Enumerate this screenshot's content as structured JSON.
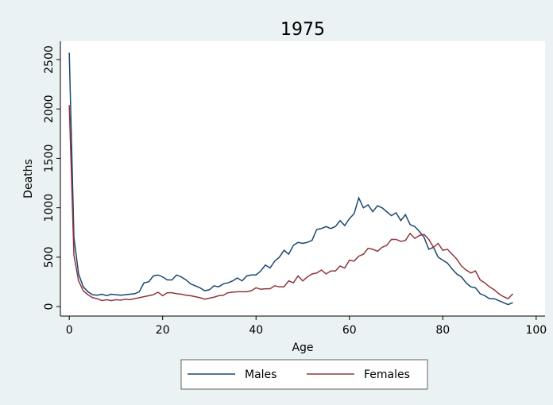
{
  "chart_data": {
    "type": "line",
    "title": "1975",
    "x_label": "Age",
    "y_label": "Deaths",
    "x": [
      0,
      1,
      2,
      3,
      4,
      5,
      6,
      7,
      8,
      9,
      10,
      11,
      12,
      13,
      14,
      15,
      16,
      17,
      18,
      19,
      20,
      21,
      22,
      23,
      24,
      25,
      26,
      27,
      28,
      29,
      30,
      31,
      32,
      33,
      34,
      35,
      36,
      37,
      38,
      39,
      40,
      41,
      42,
      43,
      44,
      45,
      46,
      47,
      48,
      49,
      50,
      51,
      52,
      53,
      54,
      55,
      56,
      57,
      58,
      59,
      60,
      61,
      62,
      63,
      64,
      65,
      66,
      67,
      68,
      69,
      70,
      71,
      72,
      73,
      74,
      75,
      76,
      77,
      78,
      79,
      80,
      81,
      82,
      83,
      84,
      85,
      86,
      87,
      88,
      89,
      90,
      91,
      92,
      93,
      94,
      95
    ],
    "series": [
      {
        "name": "Males",
        "color": "#1a476f",
        "values": [
          2570,
          700,
          330,
          200,
          150,
          120,
          115,
          125,
          110,
          125,
          120,
          115,
          120,
          125,
          130,
          150,
          240,
          250,
          310,
          320,
          300,
          270,
          270,
          320,
          300,
          270,
          230,
          210,
          190,
          160,
          170,
          210,
          200,
          230,
          240,
          260,
          290,
          260,
          310,
          320,
          320,
          360,
          420,
          390,
          460,
          500,
          570,
          530,
          620,
          650,
          640,
          650,
          670,
          780,
          790,
          810,
          790,
          810,
          870,
          820,
          890,
          940,
          1100,
          1000,
          1030,
          960,
          1020,
          1000,
          960,
          920,
          950,
          870,
          930,
          830,
          810,
          760,
          700,
          580,
          600,
          500,
          470,
          440,
          380,
          330,
          300,
          240,
          200,
          190,
          130,
          110,
          80,
          80,
          60,
          40,
          20,
          40
        ]
      },
      {
        "name": "Females",
        "color": "#90353b",
        "values": [
          2040,
          520,
          260,
          160,
          120,
          90,
          80,
          60,
          70,
          60,
          70,
          65,
          75,
          70,
          80,
          90,
          100,
          110,
          120,
          145,
          110,
          140,
          140,
          130,
          125,
          115,
          110,
          100,
          90,
          75,
          85,
          95,
          110,
          115,
          140,
          145,
          150,
          150,
          150,
          160,
          190,
          175,
          180,
          180,
          210,
          200,
          200,
          260,
          240,
          310,
          260,
          300,
          330,
          340,
          370,
          330,
          360,
          360,
          410,
          390,
          470,
          460,
          510,
          530,
          590,
          580,
          560,
          600,
          620,
          680,
          680,
          660,
          670,
          740,
          690,
          720,
          730,
          680,
          600,
          640,
          570,
          580,
          530,
          480,
          410,
          370,
          340,
          360,
          270,
          240,
          200,
          170,
          130,
          100,
          80,
          130
        ]
      }
    ],
    "xlim": [
      -1.9,
      101.9
    ],
    "ylim": [
      -96,
      2685
    ],
    "xticks": [
      0,
      20,
      40,
      60,
      80,
      100
    ],
    "yticks": [
      0,
      500,
      1000,
      1500,
      2000,
      2500
    ]
  }
}
